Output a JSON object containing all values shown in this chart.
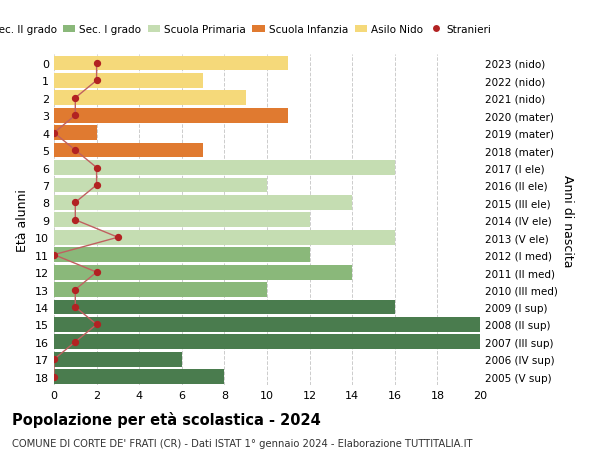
{
  "ages": [
    18,
    17,
    16,
    15,
    14,
    13,
    12,
    11,
    10,
    9,
    8,
    7,
    6,
    5,
    4,
    3,
    2,
    1,
    0
  ],
  "years": [
    "2005 (V sup)",
    "2006 (IV sup)",
    "2007 (III sup)",
    "2008 (II sup)",
    "2009 (I sup)",
    "2010 (III med)",
    "2011 (II med)",
    "2012 (I med)",
    "2013 (V ele)",
    "2014 (IV ele)",
    "2015 (III ele)",
    "2016 (II ele)",
    "2017 (I ele)",
    "2018 (mater)",
    "2019 (mater)",
    "2020 (mater)",
    "2021 (nido)",
    "2022 (nido)",
    "2023 (nido)"
  ],
  "bar_values": [
    8,
    6,
    20,
    20,
    16,
    10,
    14,
    12,
    16,
    12,
    14,
    10,
    16,
    7,
    2,
    11,
    9,
    7,
    11
  ],
  "bar_colors": [
    "#4a7c4e",
    "#4a7c4e",
    "#4a7c4e",
    "#4a7c4e",
    "#4a7c4e",
    "#8ab87a",
    "#8ab87a",
    "#8ab87a",
    "#c5ddb2",
    "#c5ddb2",
    "#c5ddb2",
    "#c5ddb2",
    "#c5ddb2",
    "#e07a30",
    "#e07a30",
    "#e07a30",
    "#f5d97a",
    "#f5d97a",
    "#f5d97a"
  ],
  "stranieri_values": [
    0,
    0,
    1,
    2,
    1,
    1,
    2,
    0,
    3,
    1,
    1,
    2,
    2,
    1,
    0,
    1,
    1,
    2,
    2
  ],
  "title": "Popolazione per età scolastica - 2024",
  "subtitle": "COMUNE DI CORTE DE' FRATI (CR) - Dati ISTAT 1° gennaio 2024 - Elaborazione TUTTITALIA.IT",
  "ylabel_left": "Età alunni",
  "ylabel_right": "Anni di nascita",
  "xlim": [
    0,
    20
  ],
  "xticks": [
    0,
    2,
    4,
    6,
    8,
    10,
    12,
    14,
    16,
    18,
    20
  ],
  "legend_labels": [
    "Sec. II grado",
    "Sec. I grado",
    "Scuola Primaria",
    "Scuola Infanzia",
    "Asilo Nido",
    "Stranieri"
  ],
  "legend_colors": [
    "#4a7c4e",
    "#8ab87a",
    "#c5ddb2",
    "#e07a30",
    "#f5d97a",
    "#b22222"
  ],
  "stranieri_color": "#b22222",
  "stranieri_line_color": "#c06060",
  "bg_color": "#ffffff"
}
